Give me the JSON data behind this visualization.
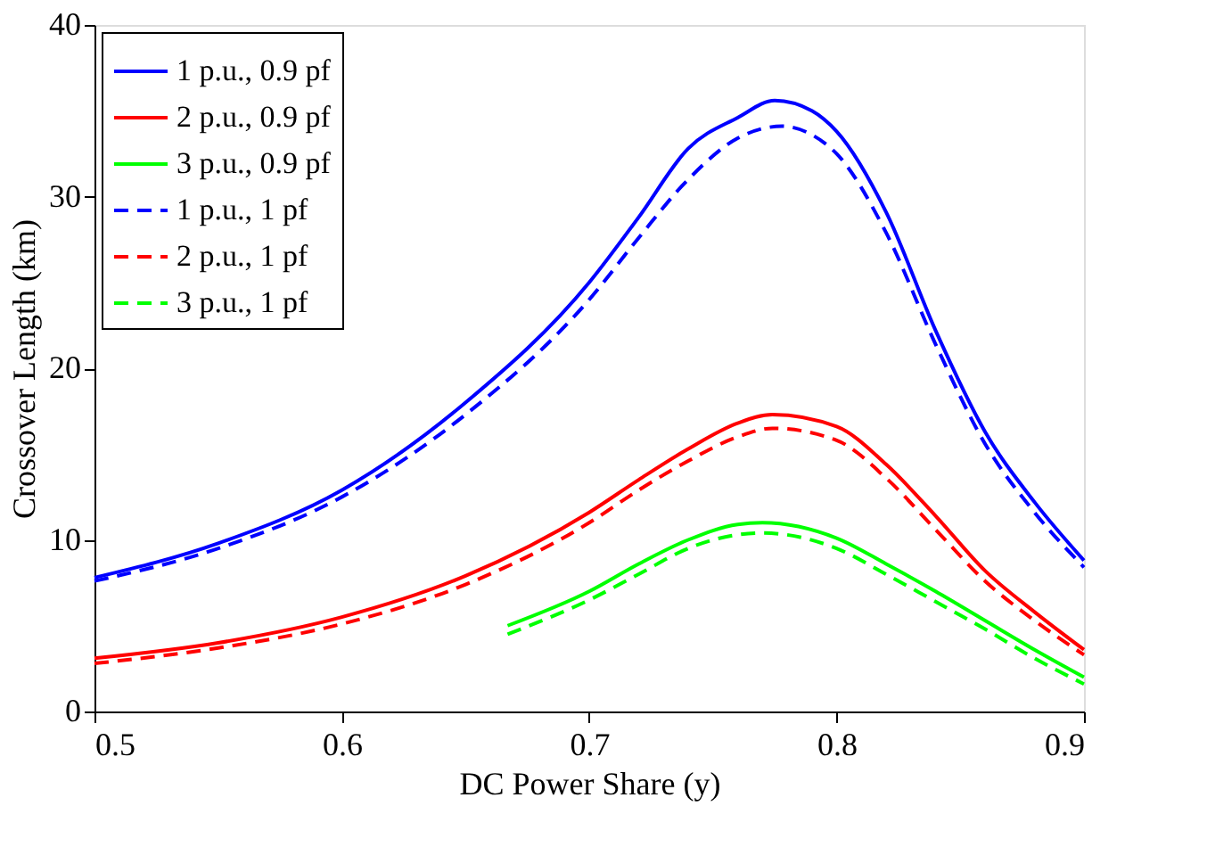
{
  "chart_data": {
    "type": "line",
    "xlabel": "DC Power Share (y)",
    "ylabel": "Crossover Length (km)",
    "xlim": [
      0.5,
      0.9
    ],
    "ylim": [
      0,
      40
    ],
    "xticks": [
      0.5,
      0.6,
      0.7,
      0.8,
      0.9
    ],
    "yticks": [
      0,
      10,
      20,
      30,
      40
    ],
    "grid": false,
    "legend": "top left",
    "marker": "none",
    "series": [
      {
        "name": "1 p.u., 0.9 pf",
        "color": "#0000ff",
        "line_style": "solid",
        "x": [
          0.5,
          0.55,
          0.6,
          0.65,
          0.7,
          0.72,
          0.74,
          0.76,
          0.775,
          0.79,
          0.8,
          0.82,
          0.84,
          0.86,
          0.88,
          0.9
        ],
        "values": [
          7.8,
          9.8,
          12.9,
          18.0,
          25.0,
          28.8,
          32.8,
          34.6,
          35.6,
          35.0,
          33.8,
          29.1,
          22.2,
          16.3,
          12.2,
          8.8
        ]
      },
      {
        "name": "2 p.u., 0.9 pf",
        "color": "#ff0000",
        "line_style": "solid",
        "x": [
          0.5,
          0.55,
          0.6,
          0.65,
          0.7,
          0.72,
          0.74,
          0.76,
          0.774,
          0.8,
          0.82,
          0.84,
          0.86,
          0.88,
          0.9
        ],
        "values": [
          3.1,
          4.0,
          5.5,
          7.9,
          11.6,
          13.5,
          15.3,
          16.8,
          17.3,
          16.6,
          14.4,
          11.4,
          8.2,
          5.8,
          3.6
        ]
      },
      {
        "name": "3 p.u., 0.9 pf",
        "color": "#00ff00",
        "line_style": "solid",
        "x": [
          0.667,
          0.7,
          0.72,
          0.74,
          0.76,
          0.77,
          0.8,
          0.82,
          0.84,
          0.86,
          0.88,
          0.9
        ],
        "values": [
          5.0,
          7.0,
          8.6,
          10.0,
          10.9,
          11.0,
          10.1,
          8.6,
          7.0,
          5.3,
          3.6,
          2.0
        ]
      },
      {
        "name": "1 p.u., 1 pf",
        "color": "#0000ff",
        "line_style": "dashed",
        "x": [
          0.5,
          0.55,
          0.6,
          0.65,
          0.7,
          0.72,
          0.74,
          0.76,
          0.778,
          0.79,
          0.8,
          0.82,
          0.84,
          0.86,
          0.88,
          0.9
        ],
        "values": [
          7.6,
          9.5,
          12.5,
          17.3,
          24.0,
          27.6,
          31.0,
          33.4,
          34.1,
          33.6,
          32.5,
          27.9,
          21.4,
          15.6,
          11.6,
          8.4
        ]
      },
      {
        "name": "2 p.u., 1 pf",
        "color": "#ff0000",
        "line_style": "dashed",
        "x": [
          0.5,
          0.55,
          0.6,
          0.65,
          0.7,
          0.72,
          0.74,
          0.76,
          0.774,
          0.8,
          0.82,
          0.84,
          0.86,
          0.88,
          0.9
        ],
        "values": [
          2.8,
          3.7,
          5.1,
          7.4,
          11.0,
          12.9,
          14.6,
          16.0,
          16.5,
          15.8,
          13.6,
          10.6,
          7.6,
          5.3,
          3.3
        ]
      },
      {
        "name": "3 p.u., 1 pf",
        "color": "#00ff00",
        "line_style": "dashed",
        "x": [
          0.667,
          0.7,
          0.72,
          0.74,
          0.76,
          0.77,
          0.8,
          0.82,
          0.84,
          0.86,
          0.88,
          0.9
        ],
        "values": [
          4.5,
          6.5,
          8.0,
          9.5,
          10.3,
          10.4,
          9.5,
          8.0,
          6.4,
          4.8,
          3.1,
          1.6
        ]
      }
    ]
  }
}
